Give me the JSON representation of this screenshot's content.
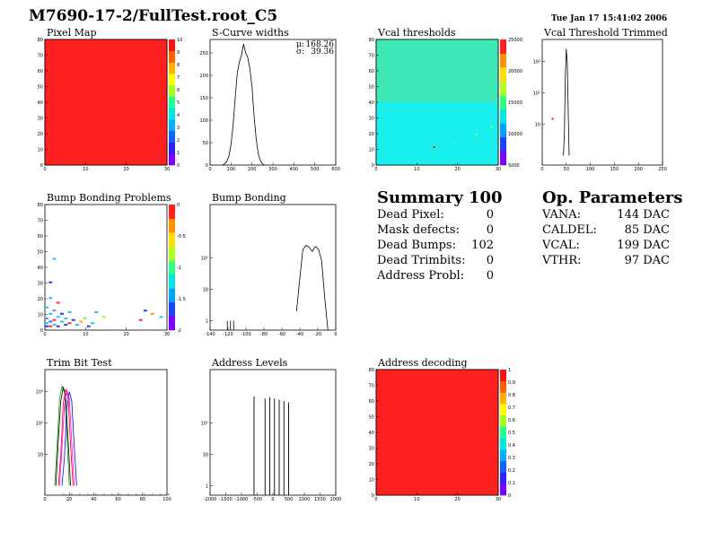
{
  "header": {
    "title": "M7690-17-2/FullTest.root_C5",
    "datetime": "Tue Jan 17 15:41:02 2006"
  },
  "summary": {
    "title": "Summary",
    "total": "100",
    "rows": [
      {
        "label": "Dead Pixel:",
        "value": "0"
      },
      {
        "label": "Mask defects:",
        "value": "0"
      },
      {
        "label": "Dead Bumps:",
        "value": "102"
      },
      {
        "label": "Dead Trimbits:",
        "value": "0"
      },
      {
        "label": "Address Probl:",
        "value": "0"
      }
    ]
  },
  "op_parameters": {
    "title": "Op. Parameters",
    "rows": [
      {
        "label": "VANA:",
        "value": "144 DAC"
      },
      {
        "label": "CALDEL:",
        "value": "85 DAC"
      },
      {
        "label": "VCAL:",
        "value": "199 DAC"
      },
      {
        "label": "VTHR:",
        "value": "97 DAC"
      }
    ]
  },
  "chart_data": [
    {
      "id": "pixel-map",
      "type": "heatmap",
      "title": "Pixel Map",
      "xlim": [
        0,
        32
      ],
      "ylim": [
        0,
        80
      ],
      "xticks": [
        "0",
        "10",
        "20",
        "30"
      ],
      "yticks": [
        "0",
        "10",
        "20",
        "30",
        "40",
        "50",
        "60",
        "70",
        "80"
      ],
      "zlim": [
        0,
        10
      ],
      "zticks": [
        "0",
        "1",
        "2",
        "3",
        "4",
        "5",
        "6",
        "7",
        "8",
        "9",
        "10"
      ],
      "uniform_value": 10,
      "fill_color": "#ff2020"
    },
    {
      "id": "scurve-widths",
      "type": "line",
      "title": "S-Curve widths",
      "stats": [
        {
          "label": "μ:",
          "value": "168.26"
        },
        {
          "label": "σ:",
          "value": "39.36"
        }
      ],
      "xlim": [
        0,
        600
      ],
      "ylim": [
        0,
        280
      ],
      "xticks": [
        "0",
        "100",
        "200",
        "300",
        "400",
        "500",
        "600"
      ],
      "yticks": [
        "0",
        "50",
        "100",
        "150",
        "200",
        "250"
      ],
      "x": [
        60,
        70,
        80,
        90,
        100,
        110,
        120,
        130,
        140,
        150,
        160,
        170,
        180,
        190,
        200,
        210,
        220,
        230,
        240,
        250,
        260
      ],
      "y": [
        0,
        3,
        8,
        20,
        45,
        90,
        150,
        205,
        230,
        245,
        270,
        250,
        240,
        215,
        175,
        110,
        60,
        25,
        10,
        3,
        0
      ]
    },
    {
      "id": "vcal-thresholds",
      "type": "heatmap",
      "title": "Vcal thresholds",
      "xlim": [
        0,
        32
      ],
      "ylim": [
        0,
        80
      ],
      "xticks": [
        "0",
        "10",
        "20",
        "30"
      ],
      "yticks": [
        "0",
        "10",
        "20",
        "30",
        "40",
        "50",
        "60",
        "70",
        "80"
      ],
      "zticks": [
        "5000",
        "10000",
        "15000",
        "20000",
        "25000"
      ],
      "bands": [
        {
          "y_from": 40,
          "y_to": 80,
          "color": "#3ee8b6"
        },
        {
          "y_from": 0,
          "y_to": 40,
          "color": "#19f0ee"
        }
      ],
      "hot_pixels": [
        [
          46,
          30,
          "#ff0000"
        ],
        [
          15,
          12,
          "#ff0000"
        ],
        [
          30,
          25,
          "#9aff5a"
        ],
        [
          26,
          20,
          "#9aff5a"
        ],
        [
          20,
          18,
          "#5fb5ff"
        ]
      ]
    },
    {
      "id": "vcal-threshold-trimmed",
      "type": "line",
      "title": "Vcal Threshold Trimmed",
      "log_y": true,
      "xlim": [
        0,
        250
      ],
      "xticks": [
        "0",
        "50",
        "100",
        "150",
        "200",
        "250"
      ],
      "yticks": [
        "10",
        "10²",
        "10³"
      ],
      "x": [
        44,
        46,
        48,
        50,
        52,
        54,
        56
      ],
      "y": [
        1,
        5,
        300,
        2500,
        900,
        30,
        1
      ]
    },
    {
      "id": "bump-bonding-problems",
      "type": "heatmap",
      "title": "Bump Bonding Problems",
      "xlim": [
        0,
        32
      ],
      "ylim": [
        0,
        80
      ],
      "xticks": [
        "0",
        "10",
        "20",
        "30"
      ],
      "yticks": [
        "0",
        "10",
        "20",
        "30",
        "40",
        "50",
        "60",
        "70",
        "80"
      ],
      "zticks": [
        "-2",
        "-1.5",
        "-1",
        "-0.5",
        "0"
      ],
      "cells": [
        [
          0,
          2,
          "#2040ff"
        ],
        [
          1,
          2,
          "#ff3030"
        ],
        [
          2,
          3,
          "#19c8ff"
        ],
        [
          3,
          2,
          "#2040ff"
        ],
        [
          0,
          4,
          "#19c8ff"
        ],
        [
          1,
          5,
          "#5060ff"
        ],
        [
          2,
          6,
          "#ff3030"
        ],
        [
          4,
          5,
          "#19c8ff"
        ],
        [
          5,
          3,
          "#2040ff"
        ],
        [
          0,
          7,
          "#4a9aff"
        ],
        [
          3,
          8,
          "#19c8ff"
        ],
        [
          6,
          4,
          "#ff3030"
        ],
        [
          1,
          10,
          "#19c8ff"
        ],
        [
          4,
          10,
          "#2040ff"
        ],
        [
          2,
          12,
          "#8080ff"
        ],
        [
          0,
          14,
          "#19c8ff"
        ],
        [
          5,
          7,
          "#19c8ff"
        ],
        [
          7,
          6,
          "#2040ff"
        ],
        [
          8,
          3,
          "#19c8ff"
        ],
        [
          9,
          5,
          "#ffa020"
        ],
        [
          10,
          7,
          "#80ff40"
        ],
        [
          12,
          4,
          "#19c8ff"
        ],
        [
          15,
          8,
          "#a0ff30"
        ],
        [
          30,
          8,
          "#19c8ff"
        ],
        [
          40,
          6,
          "#ff3030"
        ],
        [
          45,
          10,
          "#ff9010"
        ],
        [
          42,
          12,
          "#2040ff"
        ],
        [
          1,
          20,
          "#19c8ff"
        ],
        [
          2,
          45,
          "#19c8ff"
        ],
        [
          1,
          30,
          "#2040ff"
        ],
        [
          3,
          17,
          "#ff3030"
        ],
        [
          6,
          11,
          "#19c8ff"
        ],
        [
          11,
          2,
          "#2040ff"
        ],
        [
          13,
          11,
          "#19c8ff"
        ]
      ]
    },
    {
      "id": "bump-bonding",
      "type": "line",
      "title": "Bump Bonding",
      "log_y": true,
      "xlim": [
        -150,
        10
      ],
      "xticks": [
        "-140",
        "-120",
        "-100",
        "-80",
        "-60",
        "-40",
        "-20",
        "0"
      ],
      "yticks": [
        "1",
        "10",
        "10²"
      ],
      "x": [
        -128,
        -124,
        -120,
        -40,
        -36,
        -32,
        -28,
        -24,
        -20,
        -16,
        -12,
        -8,
        -4,
        0
      ],
      "y": [
        1,
        1,
        1,
        2,
        20,
        180,
        250,
        220,
        160,
        230,
        190,
        80,
        5,
        0.5
      ]
    },
    {
      "id": "trim-bit-test",
      "type": "line",
      "title": "Trim Bit Test",
      "log_y": true,
      "xlim": [
        0,
        100
      ],
      "xticks": [
        "0",
        "20",
        "40",
        "60",
        "80",
        "100"
      ],
      "yticks": [
        "10",
        "10²",
        "10³"
      ],
      "series": [
        {
          "color": "#20a020",
          "x": [
            8,
            10,
            12,
            14,
            16,
            18,
            20
          ],
          "y": [
            1,
            20,
            600,
            1500,
            900,
            40,
            1
          ]
        },
        {
          "color": "#000000",
          "x": [
            9,
            11,
            13,
            15,
            17,
            19,
            21
          ],
          "y": [
            1,
            30,
            500,
            1400,
            800,
            30,
            1
          ]
        },
        {
          "color": "#ff0000",
          "x": [
            11,
            13,
            15,
            17,
            19,
            21,
            23
          ],
          "y": [
            1,
            10,
            400,
            1200,
            700,
            20,
            1
          ]
        },
        {
          "color": "#0000ff",
          "x": [
            14,
            16,
            18,
            20,
            22,
            24,
            26
          ],
          "y": [
            1,
            8,
            300,
            1000,
            500,
            20,
            1
          ]
        },
        {
          "color": "#ff00ff",
          "x": [
            12,
            14,
            16,
            18,
            20,
            22,
            24
          ],
          "y": [
            1,
            15,
            350,
            1100,
            600,
            25,
            1
          ]
        }
      ]
    },
    {
      "id": "address-levels",
      "type": "line",
      "title": "Address Levels",
      "log_y": true,
      "xlim": [
        -2000,
        2000
      ],
      "xticks": [
        "-2000",
        "-1500",
        "-1000",
        "-500",
        "0",
        "500",
        "1000",
        "1500",
        "2000"
      ],
      "yticks": [
        "1",
        "10",
        "10²"
      ],
      "peaks_x": [
        -600,
        -250,
        -100,
        50,
        200,
        350,
        500
      ],
      "peaks_y": [
        700,
        600,
        650,
        600,
        550,
        500,
        450
      ]
    },
    {
      "id": "address-decoding",
      "type": "heatmap",
      "title": "Address decoding",
      "xlim": [
        0,
        32
      ],
      "ylim": [
        0,
        80
      ],
      "xticks": [
        "0",
        "10",
        "20",
        "30"
      ],
      "yticks": [
        "0",
        "10",
        "20",
        "30",
        "40",
        "50",
        "60",
        "70",
        "80"
      ],
      "zticks": [
        "0",
        "0.1",
        "0.2",
        "0.3",
        "0.4",
        "0.5",
        "0.6",
        "0.7",
        "0.8",
        "0.9",
        "1"
      ],
      "uniform_value": 1,
      "fill_color": "#ff2020"
    }
  ]
}
